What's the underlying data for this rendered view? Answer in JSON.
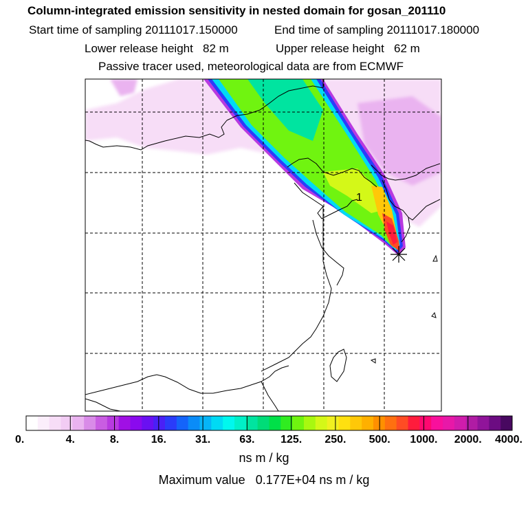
{
  "title": "Column-integrated emission sensitivity in nested domain for gosan_201110",
  "sampling": {
    "start_label": "Start time of sampling",
    "start_value": "20111017.150000",
    "end_label": "End time of sampling",
    "end_value": "20111017.180000"
  },
  "release": {
    "lower_label": "Lower release height",
    "lower_value": "82 m",
    "upper_label": "Upper release height",
    "upper_value": "62 m"
  },
  "tracer_note": "Passive tracer used, meteorological data are from ECMWF",
  "map_label": "1",
  "colorbar": {
    "units": "ns m / kg",
    "ticks": [
      "0.",
      "4.",
      "8.",
      "16.",
      "31.",
      "63.",
      "125.",
      "250.",
      "500.",
      "1000.",
      "2000.",
      "4000."
    ],
    "colors": [
      "#ffffff",
      "#fbeefb",
      "#f7ddf7",
      "#f2ccf4",
      "#eab3f0",
      "#d98be8",
      "#c95de2",
      "#b83ae0",
      "#a010e4",
      "#8a0aee",
      "#6a10f2",
      "#4a20f6",
      "#2a3cfa",
      "#1464fa",
      "#0a8cf8",
      "#06b4f6",
      "#00daf4",
      "#00f8ee",
      "#00f0c8",
      "#00e4a0",
      "#00dc78",
      "#00e048",
      "#30ec20",
      "#70f410",
      "#a8f810",
      "#d4f818",
      "#f0f020",
      "#ffe010",
      "#ffc808",
      "#ffb000",
      "#ff9000",
      "#ff7010",
      "#ff4c24",
      "#ff1c3c",
      "#ff0870",
      "#f8109c",
      "#e818a8",
      "#d01cac",
      "#b01ca4",
      "#90149a",
      "#6c0c82",
      "#480860"
    ]
  },
  "max_value": {
    "label": "Maximum value",
    "value": "0.177E+04",
    "units": "ns m / kg"
  }
}
